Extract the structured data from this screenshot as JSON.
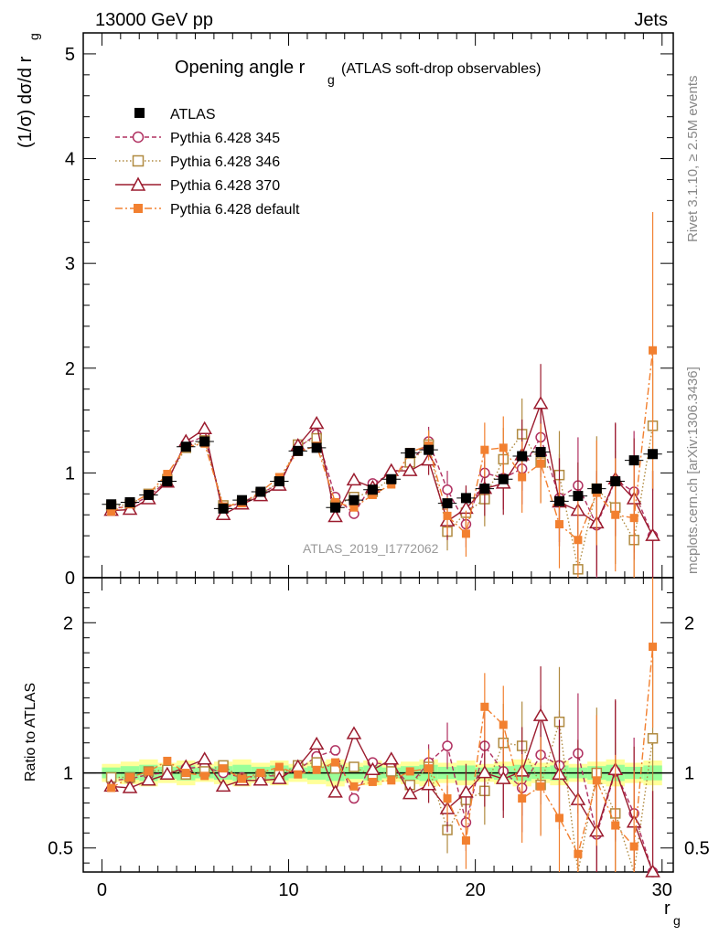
{
  "header": {
    "left_label": "13000 GeV pp",
    "right_label": "Jets"
  },
  "side_labels": {
    "rivet": "Rivet 3.1.10, ≥ 2.5M events",
    "mcplots": "mcplots.cern.ch [arXiv:1306.3436]"
  },
  "chart_data": [
    {
      "type": "line",
      "title": "Opening angle",
      "title_symbol": "r",
      "title_subscript": "g",
      "title_suffix": "(ATLAS soft-drop observables)",
      "xlabel": "r",
      "xlabel_subscript": "g",
      "ylabel": "(1/σ) dσ/d r",
      "ylabel_subscript": "g",
      "watermark": "ATLAS_2019_I1772062",
      "xlim": [
        -1,
        30.6
      ],
      "ylim": [
        0,
        5.2
      ],
      "x_ticks": [
        0,
        10,
        20,
        30
      ],
      "y_ticks": [
        0,
        1,
        2,
        3,
        4,
        5
      ],
      "legend_position": "top-left",
      "x": [
        0.5,
        1.5,
        2.5,
        3.5,
        4.5,
        5.5,
        6.5,
        7.5,
        8.5,
        9.5,
        10.5,
        11.5,
        12.5,
        13.5,
        14.5,
        15.5,
        16.5,
        17.5,
        18.5,
        19.5,
        20.5,
        21.5,
        22.5,
        23.5,
        24.5,
        25.5,
        26.5,
        27.5,
        28.5,
        29.5
      ],
      "series": [
        {
          "name": "ATLAS",
          "color": "#000000",
          "style": "data",
          "values": [
            0.7,
            0.72,
            0.79,
            0.92,
            1.25,
            1.3,
            0.66,
            0.74,
            0.82,
            0.92,
            1.21,
            1.24,
            0.67,
            0.74,
            0.84,
            0.94,
            1.19,
            1.22,
            0.71,
            0.76,
            0.85,
            0.94,
            1.16,
            1.2,
            0.73,
            0.78,
            0.85,
            0.92,
            1.12,
            1.18
          ]
        },
        {
          "name": "Pythia 6.428 345",
          "color": "#b03060",
          "style": "circle-dashed",
          "values": [
            0.66,
            0.68,
            0.78,
            0.92,
            1.28,
            1.35,
            0.66,
            0.72,
            0.8,
            0.9,
            1.24,
            1.37,
            0.77,
            0.61,
            0.9,
            0.99,
            1.1,
            1.3,
            0.84,
            0.51,
            1.0,
            0.95,
            1.04,
            1.34,
            0.76,
            0.88,
            0.5,
            0.93,
            0.82,
            0.4
          ]
        },
        {
          "name": "Pythia 6.428 346",
          "color": "#b08a40",
          "style": "square-dotted",
          "values": [
            0.68,
            0.7,
            0.8,
            0.94,
            1.24,
            1.31,
            0.69,
            0.71,
            0.8,
            0.91,
            1.27,
            1.33,
            0.69,
            0.77,
            0.82,
            0.95,
            1.1,
            1.27,
            0.44,
            0.62,
            0.75,
            1.13,
            1.37,
            1.1,
            0.98,
            0.08,
            0.85,
            0.67,
            0.36,
            1.45
          ]
        },
        {
          "name": "Pythia 6.428 370",
          "color": "#9b1b2e",
          "style": "triangle-solid",
          "values": [
            0.64,
            0.65,
            0.75,
            0.91,
            1.3,
            1.42,
            0.6,
            0.7,
            0.78,
            0.88,
            1.26,
            1.47,
            0.58,
            0.93,
            0.86,
            1.02,
            1.02,
            1.12,
            0.54,
            0.66,
            0.85,
            0.9,
            1.17,
            1.66,
            0.72,
            0.64,
            0.52,
            0.94,
            0.75,
            0.4
          ]
        },
        {
          "name": "Pythia 6.428 default",
          "color": "#f28030",
          "style": "filled-square-dashdot",
          "values": [
            0.63,
            0.7,
            0.8,
            0.99,
            1.25,
            1.28,
            0.68,
            0.71,
            0.82,
            0.96,
            1.2,
            1.26,
            0.72,
            0.67,
            0.79,
            0.89,
            1.2,
            1.26,
            0.59,
            0.42,
            1.22,
            1.24,
            0.96,
            1.09,
            0.51,
            0.36,
            0.81,
            0.6,
            0.57,
            2.17
          ]
        }
      ]
    },
    {
      "type": "line",
      "ylabel": "Ratio to ATLAS",
      "xlabel": "r",
      "xlabel_subscript": "g",
      "xlim": [
        -1,
        30.6
      ],
      "ylim": [
        0.34,
        2.3
      ],
      "y_ticks": [
        0.5,
        1,
        2
      ],
      "y_tick_labels": [
        "0.5",
        "1",
        "2"
      ],
      "x_ticks": [
        0,
        10,
        20,
        30
      ],
      "reference_line": 1,
      "x": [
        0.5,
        1.5,
        2.5,
        3.5,
        4.5,
        5.5,
        6.5,
        7.5,
        8.5,
        9.5,
        10.5,
        11.5,
        12.5,
        13.5,
        14.5,
        15.5,
        16.5,
        17.5,
        18.5,
        19.5,
        20.5,
        21.5,
        22.5,
        23.5,
        24.5,
        25.5,
        26.5,
        27.5,
        28.5,
        29.5
      ],
      "series": [
        {
          "name": "Pythia 6.428 345",
          "values": [
            0.95,
            0.96,
            0.99,
            1.0,
            1.03,
            1.04,
            1.0,
            0.97,
            0.98,
            0.98,
            1.02,
            1.11,
            1.15,
            0.83,
            1.07,
            1.05,
            0.92,
            1.07,
            1.18,
            0.67,
            1.18,
            1.01,
            0.9,
            1.12,
            1.05,
            1.13,
            0.59,
            1.01,
            0.73,
            0.34
          ]
        },
        {
          "name": "Pythia 6.428 346",
          "values": [
            0.97,
            0.97,
            1.01,
            1.02,
            0.99,
            1.01,
            1.05,
            0.96,
            0.98,
            0.99,
            1.05,
            1.07,
            1.03,
            1.04,
            0.98,
            1.01,
            0.92,
            1.04,
            0.62,
            0.82,
            0.88,
            1.2,
            1.18,
            0.92,
            1.34,
            0.1,
            1.0,
            0.73,
            0.32,
            1.23
          ]
        },
        {
          "name": "Pythia 6.428 370",
          "values": [
            0.91,
            0.9,
            0.95,
            0.99,
            1.04,
            1.09,
            0.91,
            0.95,
            0.95,
            0.96,
            1.04,
            1.19,
            0.87,
            1.26,
            1.02,
            1.09,
            0.86,
            0.92,
            0.76,
            0.87,
            1.0,
            0.96,
            1.01,
            1.38,
            0.99,
            0.82,
            0.61,
            1.02,
            0.67,
            0.34
          ]
        },
        {
          "name": "Pythia 6.428 default",
          "values": [
            0.9,
            0.97,
            1.01,
            1.08,
            1.0,
            0.98,
            1.03,
            0.96,
            1.0,
            1.04,
            0.99,
            1.02,
            1.07,
            0.91,
            0.94,
            0.95,
            1.01,
            1.03,
            0.83,
            0.55,
            1.44,
            1.32,
            0.83,
            0.91,
            0.7,
            0.46,
            0.95,
            0.65,
            0.51,
            1.84
          ]
        }
      ]
    }
  ]
}
